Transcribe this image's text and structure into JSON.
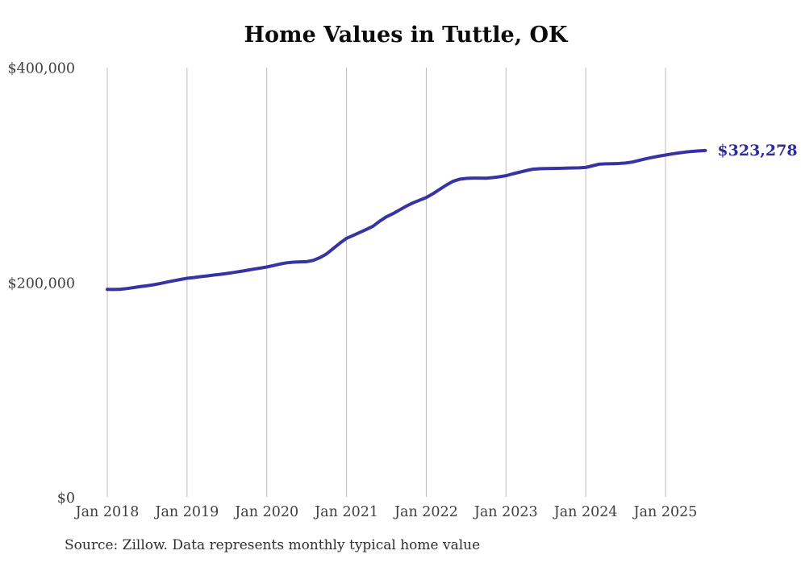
{
  "page": {
    "title": "Home Values in Tuttle, OK",
    "source_note": "Source: Zillow. Data represents monthly typical home value"
  },
  "chart_data": {
    "type": "line",
    "title": "Home Values in Tuttle, OK",
    "x_tick_labels": [
      "Jan 2018",
      "Jan 2019",
      "Jan 2020",
      "Jan 2021",
      "Jan 2022",
      "Jan 2023",
      "Jan 2024",
      "Jan 2025"
    ],
    "y_tick_labels": [
      "$0",
      "$200,000",
      "$400,000"
    ],
    "y_ticks": [
      0,
      200000,
      400000
    ],
    "ylim": [
      0,
      400000
    ],
    "grid": "vertical-only",
    "grid_color": "#bcbcbc",
    "axis_label_color": "#404040",
    "line_color": "#3733a3",
    "end_label": "$323,278",
    "end_label_color": "#2e2b9c",
    "final_value": 323278,
    "legend": "none",
    "source_note": "Source: Zillow. Data represents monthly typical home value",
    "series": [
      {
        "name": "Monthly typical home value",
        "start": "2018-01",
        "end": "2025-07",
        "frequency": "monthly",
        "values": [
          194000,
          193900,
          194100,
          194800,
          195700,
          196600,
          197400,
          198300,
          199500,
          200800,
          202000,
          203200,
          204300,
          205000,
          205800,
          206500,
          207300,
          208000,
          208800,
          209700,
          210700,
          211700,
          212800,
          213800,
          214800,
          216200,
          217600,
          218700,
          219300,
          219600,
          219800,
          221000,
          223500,
          227000,
          232000,
          237000,
          241500,
          244200,
          247000,
          249800,
          252800,
          257500,
          261500,
          264500,
          268000,
          271500,
          274500,
          277000,
          279500,
          283000,
          287000,
          291000,
          294500,
          296500,
          297300,
          297600,
          297600,
          297500,
          298000,
          298800,
          299800,
          301500,
          303000,
          304500,
          305800,
          306300,
          306500,
          306600,
          306700,
          306800,
          307000,
          307100,
          307500,
          309000,
          310500,
          310900,
          311000,
          311200,
          311600,
          312500,
          314000,
          315500,
          316800,
          318000,
          319000,
          320100,
          321000,
          321800,
          322400,
          322900,
          323278
        ]
      }
    ]
  }
}
